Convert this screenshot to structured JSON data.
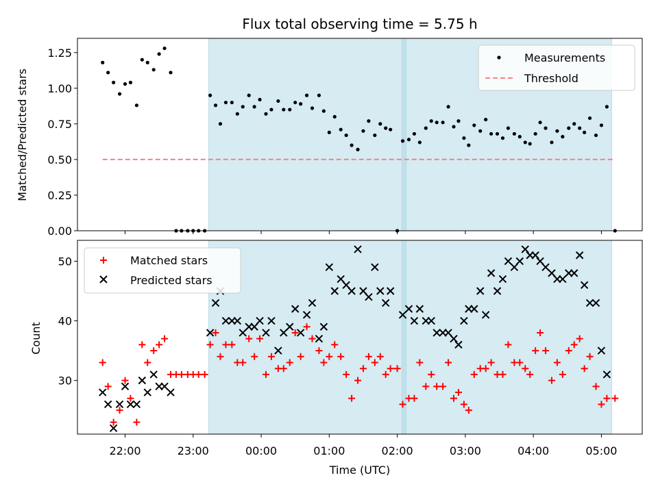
{
  "chart_data": {
    "type": "scatter",
    "title": "Flux total observing time = 5.75 h",
    "xlabel": "Time (UTC)",
    "x_range_hours": [
      21.3,
      29.6
    ],
    "x_ticks": [
      {
        "h": 22,
        "label": "22:00"
      },
      {
        "h": 23,
        "label": "23:00"
      },
      {
        "h": 24,
        "label": "00:00"
      },
      {
        "h": 25,
        "label": "01:00"
      },
      {
        "h": 26,
        "label": "02:00"
      },
      {
        "h": 27,
        "label": "03:00"
      },
      {
        "h": 28,
        "label": "04:00"
      },
      {
        "h": 29,
        "label": "05:00"
      }
    ],
    "shaded_intervals_hours": [
      [
        23.23,
        26.13
      ],
      [
        26.07,
        29.15
      ]
    ],
    "top": {
      "ylabel": "Matched/Predicted stars",
      "ylim": [
        0,
        1.35
      ],
      "y_ticks": [
        "0.00",
        "0.25",
        "0.50",
        "0.75",
        "1.00",
        "1.25"
      ],
      "legend": {
        "measurements": "Measurements",
        "threshold": "Threshold"
      },
      "threshold": {
        "value": 0.5,
        "x_start": 21.67,
        "x_end": 29.2,
        "color": "#ff7f7f"
      },
      "measurements": [
        [
          21.67,
          1.18
        ],
        [
          21.75,
          1.11
        ],
        [
          21.83,
          1.04
        ],
        [
          21.92,
          0.96
        ],
        [
          22.0,
          1.03
        ],
        [
          22.08,
          1.04
        ],
        [
          22.17,
          0.88
        ],
        [
          22.25,
          1.2
        ],
        [
          22.33,
          1.18
        ],
        [
          22.42,
          1.13
        ],
        [
          22.5,
          1.24
        ],
        [
          22.58,
          1.28
        ],
        [
          22.67,
          1.11
        ],
        [
          22.75,
          0.0
        ],
        [
          22.83,
          0.0
        ],
        [
          22.92,
          0.0
        ],
        [
          23.0,
          0.0
        ],
        [
          23.08,
          0.0
        ],
        [
          23.17,
          0.0
        ],
        [
          23.25,
          0.95
        ],
        [
          23.33,
          0.88
        ],
        [
          23.4,
          0.75
        ],
        [
          23.48,
          0.9
        ],
        [
          23.57,
          0.9
        ],
        [
          23.65,
          0.82
        ],
        [
          23.73,
          0.87
        ],
        [
          23.82,
          0.95
        ],
        [
          23.9,
          0.87
        ],
        [
          23.98,
          0.92
        ],
        [
          24.07,
          0.82
        ],
        [
          24.15,
          0.85
        ],
        [
          24.25,
          0.91
        ],
        [
          24.33,
          0.85
        ],
        [
          24.42,
          0.85
        ],
        [
          24.5,
          0.9
        ],
        [
          24.58,
          0.89
        ],
        [
          24.67,
          0.95
        ],
        [
          24.75,
          0.86
        ],
        [
          24.85,
          0.95
        ],
        [
          24.92,
          0.84
        ],
        [
          25.0,
          0.69
        ],
        [
          25.08,
          0.8
        ],
        [
          25.17,
          0.71
        ],
        [
          25.25,
          0.67
        ],
        [
          25.33,
          0.6
        ],
        [
          25.42,
          0.57
        ],
        [
          25.5,
          0.7
        ],
        [
          25.58,
          0.77
        ],
        [
          25.67,
          0.67
        ],
        [
          25.75,
          0.75
        ],
        [
          25.83,
          0.72
        ],
        [
          25.9,
          0.71
        ],
        [
          26.0,
          0.0
        ],
        [
          26.08,
          0.63
        ],
        [
          26.17,
          0.64
        ],
        [
          26.25,
          0.68
        ],
        [
          26.33,
          0.62
        ],
        [
          26.42,
          0.72
        ],
        [
          26.5,
          0.77
        ],
        [
          26.58,
          0.76
        ],
        [
          26.67,
          0.76
        ],
        [
          26.75,
          0.87
        ],
        [
          26.83,
          0.73
        ],
        [
          26.9,
          0.77
        ],
        [
          26.98,
          0.65
        ],
        [
          27.05,
          0.6
        ],
        [
          27.13,
          0.74
        ],
        [
          27.22,
          0.7
        ],
        [
          27.3,
          0.78
        ],
        [
          27.38,
          0.68
        ],
        [
          27.47,
          0.68
        ],
        [
          27.55,
          0.65
        ],
        [
          27.63,
          0.72
        ],
        [
          27.72,
          0.68
        ],
        [
          27.8,
          0.66
        ],
        [
          27.88,
          0.62
        ],
        [
          27.95,
          0.61
        ],
        [
          28.03,
          0.68
        ],
        [
          28.1,
          0.76
        ],
        [
          28.18,
          0.72
        ],
        [
          28.27,
          0.62
        ],
        [
          28.35,
          0.7
        ],
        [
          28.43,
          0.66
        ],
        [
          28.52,
          0.72
        ],
        [
          28.6,
          0.75
        ],
        [
          28.68,
          0.72
        ],
        [
          28.75,
          0.69
        ],
        [
          28.83,
          0.79
        ],
        [
          28.92,
          0.67
        ],
        [
          29.0,
          0.74
        ],
        [
          29.08,
          0.87
        ],
        [
          29.2,
          0.0
        ]
      ]
    },
    "bottom": {
      "ylabel": "Count",
      "ylim": [
        21,
        53.5
      ],
      "y_ticks": [
        "30",
        "40",
        "50"
      ],
      "legend": {
        "matched": "Matched stars",
        "predicted": "Predicted stars"
      },
      "matched": [
        [
          21.67,
          33
        ],
        [
          21.75,
          29
        ],
        [
          21.83,
          23
        ],
        [
          21.92,
          25
        ],
        [
          22.0,
          30
        ],
        [
          22.08,
          27
        ],
        [
          22.17,
          23
        ],
        [
          22.25,
          36
        ],
        [
          22.33,
          33
        ],
        [
          22.42,
          35
        ],
        [
          22.5,
          36
        ],
        [
          22.58,
          37
        ],
        [
          22.67,
          31
        ],
        [
          22.75,
          31
        ],
        [
          22.83,
          31
        ],
        [
          22.92,
          31
        ],
        [
          23.0,
          31
        ],
        [
          23.08,
          31
        ],
        [
          23.17,
          31
        ],
        [
          23.25,
          36
        ],
        [
          23.33,
          38
        ],
        [
          23.4,
          34
        ],
        [
          23.48,
          36
        ],
        [
          23.57,
          36
        ],
        [
          23.65,
          33
        ],
        [
          23.73,
          33
        ],
        [
          23.82,
          37
        ],
        [
          23.9,
          34
        ],
        [
          23.98,
          37
        ],
        [
          24.07,
          31
        ],
        [
          24.15,
          34
        ],
        [
          24.25,
          32
        ],
        [
          24.33,
          32
        ],
        [
          24.42,
          33
        ],
        [
          24.5,
          38
        ],
        [
          24.58,
          34
        ],
        [
          24.67,
          39
        ],
        [
          24.75,
          37
        ],
        [
          24.85,
          35
        ],
        [
          24.92,
          33
        ],
        [
          25.0,
          34
        ],
        [
          25.08,
          36
        ],
        [
          25.17,
          34
        ],
        [
          25.25,
          31
        ],
        [
          25.33,
          27
        ],
        [
          25.42,
          30
        ],
        [
          25.5,
          32
        ],
        [
          25.58,
          34
        ],
        [
          25.67,
          33
        ],
        [
          25.75,
          34
        ],
        [
          25.83,
          31
        ],
        [
          25.9,
          32
        ],
        [
          26.0,
          32
        ],
        [
          26.08,
          26
        ],
        [
          26.17,
          27
        ],
        [
          26.25,
          27
        ],
        [
          26.33,
          33
        ],
        [
          26.42,
          29
        ],
        [
          26.5,
          31
        ],
        [
          26.58,
          29
        ],
        [
          26.67,
          29
        ],
        [
          26.75,
          33
        ],
        [
          26.83,
          27
        ],
        [
          26.9,
          28
        ],
        [
          26.98,
          26
        ],
        [
          27.05,
          25
        ],
        [
          27.13,
          31
        ],
        [
          27.22,
          32
        ],
        [
          27.3,
          32
        ],
        [
          27.38,
          33
        ],
        [
          27.47,
          31
        ],
        [
          27.55,
          31
        ],
        [
          27.63,
          36
        ],
        [
          27.72,
          33
        ],
        [
          27.8,
          33
        ],
        [
          27.88,
          32
        ],
        [
          27.95,
          31
        ],
        [
          28.03,
          35
        ],
        [
          28.1,
          38
        ],
        [
          28.18,
          35
        ],
        [
          28.27,
          30
        ],
        [
          28.35,
          33
        ],
        [
          28.43,
          31
        ],
        [
          28.52,
          35
        ],
        [
          28.6,
          36
        ],
        [
          28.68,
          37
        ],
        [
          28.75,
          32
        ],
        [
          28.83,
          34
        ],
        [
          28.92,
          29
        ],
        [
          29.0,
          26
        ],
        [
          29.08,
          27
        ],
        [
          29.2,
          27
        ]
      ],
      "predicted": [
        [
          21.67,
          28
        ],
        [
          21.75,
          26
        ],
        [
          21.83,
          22
        ],
        [
          21.92,
          26
        ],
        [
          22.0,
          29
        ],
        [
          22.08,
          26
        ],
        [
          22.17,
          26
        ],
        [
          22.25,
          30
        ],
        [
          22.33,
          28
        ],
        [
          22.42,
          31
        ],
        [
          22.5,
          29
        ],
        [
          22.58,
          29
        ],
        [
          22.67,
          28
        ],
        [
          23.25,
          38
        ],
        [
          23.33,
          43
        ],
        [
          23.4,
          45
        ],
        [
          23.48,
          40
        ],
        [
          23.57,
          40
        ],
        [
          23.65,
          40
        ],
        [
          23.73,
          38
        ],
        [
          23.82,
          39
        ],
        [
          23.9,
          39
        ],
        [
          23.98,
          40
        ],
        [
          24.07,
          38
        ],
        [
          24.15,
          40
        ],
        [
          24.25,
          35
        ],
        [
          24.33,
          38
        ],
        [
          24.42,
          39
        ],
        [
          24.5,
          42
        ],
        [
          24.58,
          38
        ],
        [
          24.67,
          41
        ],
        [
          24.75,
          43
        ],
        [
          24.85,
          37
        ],
        [
          24.92,
          39
        ],
        [
          25.0,
          49
        ],
        [
          25.08,
          45
        ],
        [
          25.17,
          47
        ],
        [
          25.25,
          46
        ],
        [
          25.33,
          45
        ],
        [
          25.42,
          52
        ],
        [
          25.5,
          45
        ],
        [
          25.58,
          44
        ],
        [
          25.67,
          49
        ],
        [
          25.75,
          45
        ],
        [
          25.83,
          43
        ],
        [
          25.9,
          45
        ],
        [
          26.08,
          41
        ],
        [
          26.17,
          42
        ],
        [
          26.25,
          40
        ],
        [
          26.33,
          42
        ],
        [
          26.42,
          40
        ],
        [
          26.5,
          40
        ],
        [
          26.58,
          38
        ],
        [
          26.67,
          38
        ],
        [
          26.75,
          38
        ],
        [
          26.83,
          37
        ],
        [
          26.9,
          36
        ],
        [
          26.98,
          40
        ],
        [
          27.05,
          42
        ],
        [
          27.13,
          42
        ],
        [
          27.22,
          45
        ],
        [
          27.3,
          41
        ],
        [
          27.38,
          48
        ],
        [
          27.47,
          45
        ],
        [
          27.55,
          47
        ],
        [
          27.63,
          50
        ],
        [
          27.72,
          49
        ],
        [
          27.8,
          50
        ],
        [
          27.88,
          52
        ],
        [
          27.95,
          51
        ],
        [
          28.03,
          51
        ],
        [
          28.1,
          50
        ],
        [
          28.18,
          49
        ],
        [
          28.27,
          48
        ],
        [
          28.35,
          47
        ],
        [
          28.43,
          47
        ],
        [
          28.52,
          48
        ],
        [
          28.6,
          48
        ],
        [
          28.68,
          51
        ],
        [
          28.75,
          46
        ],
        [
          28.83,
          43
        ],
        [
          28.92,
          43
        ],
        [
          29.0,
          35
        ],
        [
          29.08,
          31
        ]
      ]
    }
  }
}
